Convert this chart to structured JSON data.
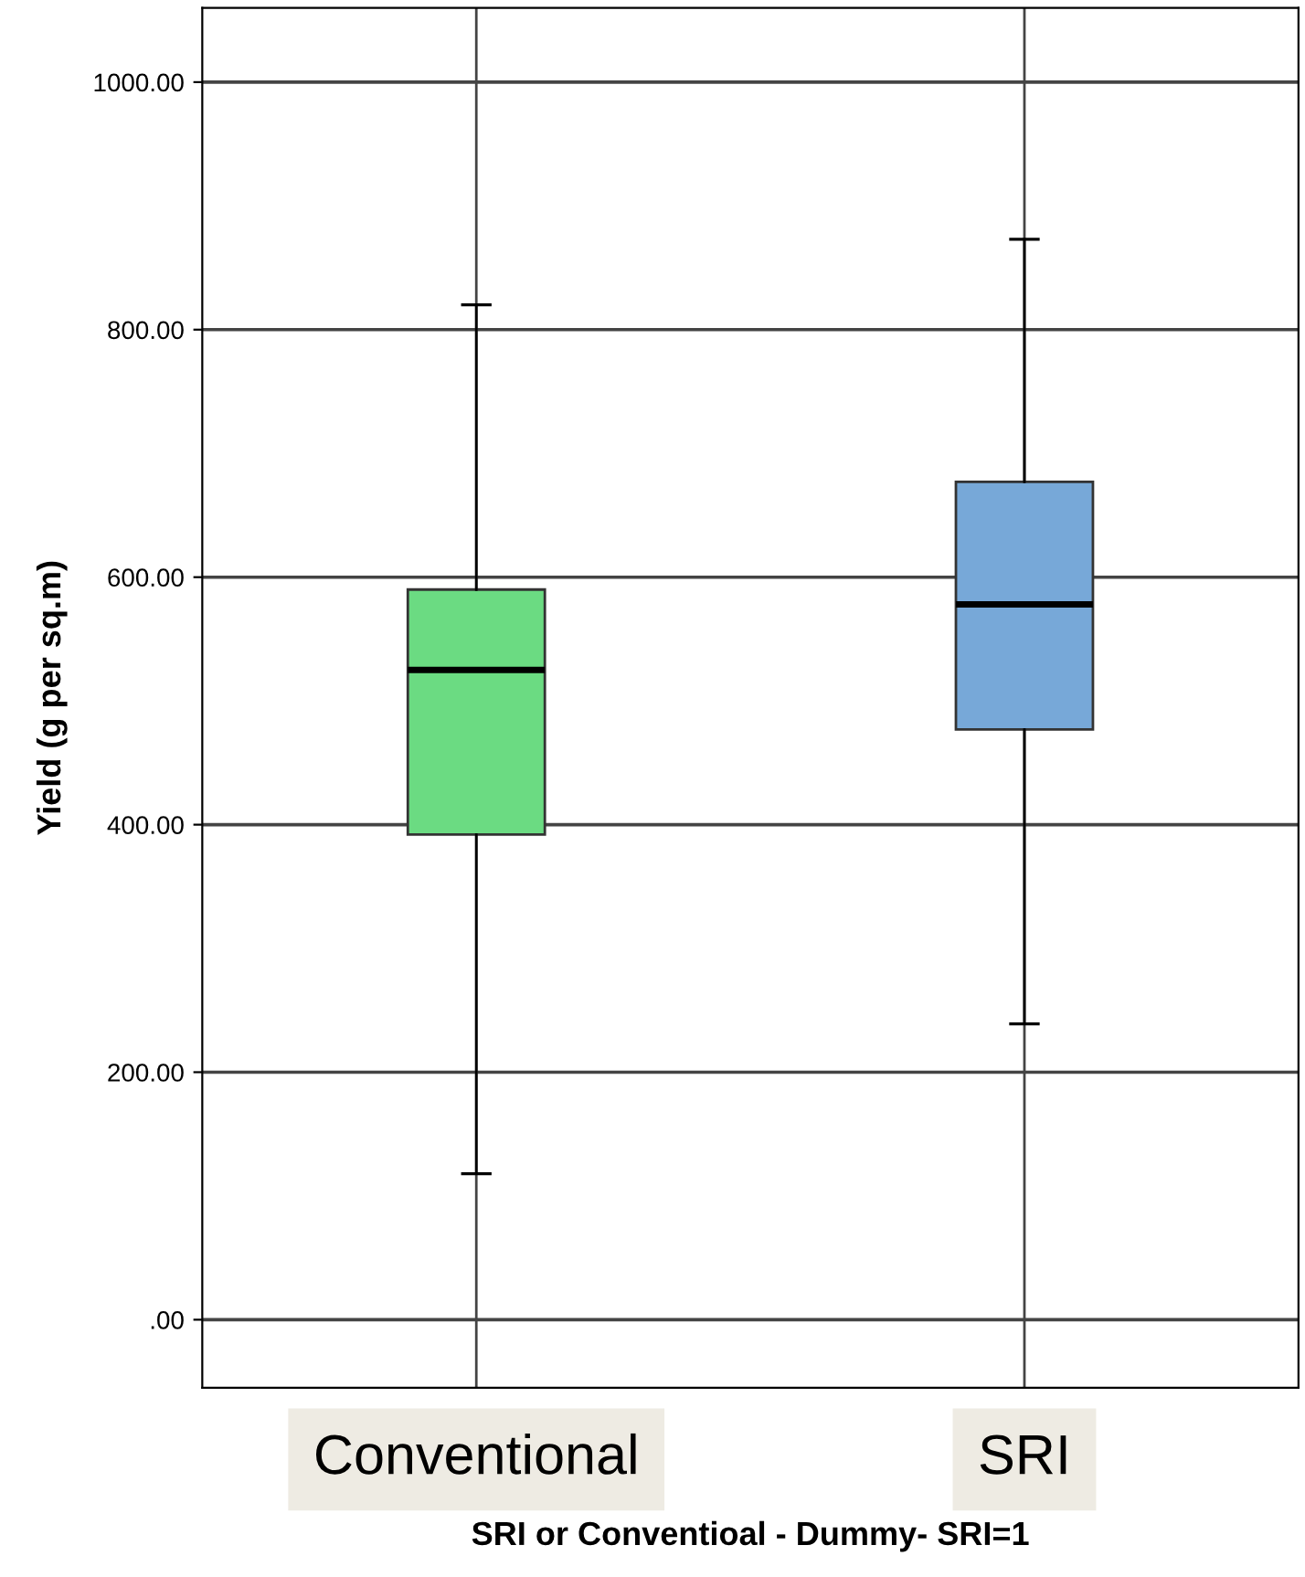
{
  "chart_data": {
    "type": "box",
    "xlabel": "SRI or Conventioal - Dummy- SRI=1",
    "ylabel": "Yield (g per sq.m)",
    "categories": [
      "Conventional",
      "SRI"
    ],
    "colors": [
      "#6bdb82",
      "#77a8d8"
    ],
    "boxes": [
      {
        "low": 118,
        "q1": 392,
        "median": 525,
        "q3": 590,
        "high": 820
      },
      {
        "low": 239,
        "q1": 477,
        "median": 578,
        "q3": 677,
        "high": 873
      }
    ],
    "ylim": [
      -55,
      1060
    ],
    "yticks": [
      {
        "value": 0,
        "label": ".00"
      },
      {
        "value": 200,
        "label": "200.00"
      },
      {
        "value": 400,
        "label": "400.00"
      },
      {
        "value": 600,
        "label": "600.00"
      },
      {
        "value": 800,
        "label": "800.00"
      },
      {
        "value": 1000,
        "label": "1000.00"
      }
    ],
    "grid": true
  }
}
